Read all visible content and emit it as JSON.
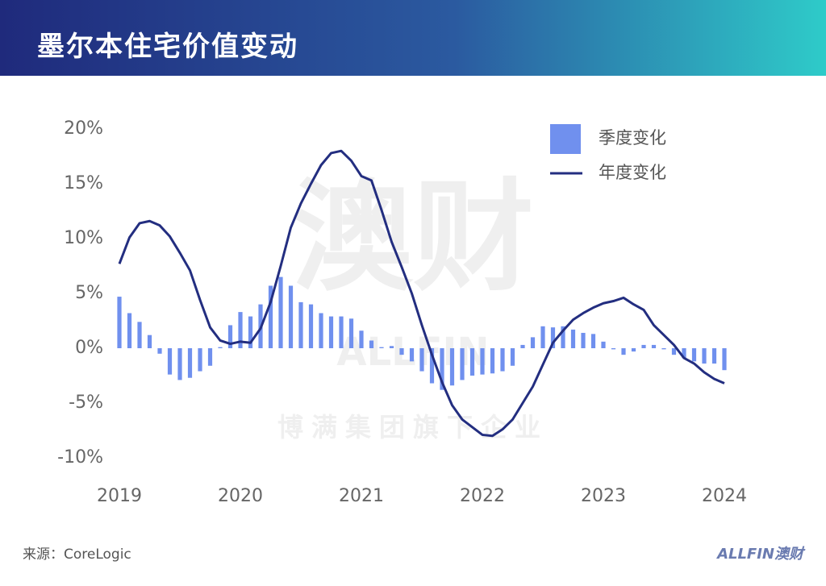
{
  "header": {
    "title": "墨尔本住宅价值变动"
  },
  "watermark": {
    "main": "澳财",
    "brand": "ALLFIN",
    "tagline": "博满集团旗下企业"
  },
  "footer": {
    "source": "来源：CoreLogic",
    "logo": "ALLFIN澳财"
  },
  "chart_data": {
    "type": "combo",
    "categories": [
      "2019",
      null,
      null,
      null,
      null,
      null,
      null,
      null,
      null,
      null,
      null,
      null,
      "2020",
      null,
      null,
      null,
      null,
      null,
      null,
      null,
      null,
      null,
      null,
      null,
      "2021",
      null,
      null,
      null,
      null,
      null,
      null,
      null,
      null,
      null,
      null,
      null,
      "2022",
      null,
      null,
      null,
      null,
      null,
      null,
      null,
      null,
      null,
      null,
      null,
      "2023",
      null,
      null,
      null,
      null,
      null,
      null,
      null,
      null,
      null,
      null,
      null,
      "2024"
    ],
    "series": [
      {
        "name": "季度变化",
        "type": "bar",
        "color": "#7090ee",
        "values": [
          4.7,
          3.2,
          2.4,
          1.2,
          -0.5,
          -2.4,
          -2.9,
          -2.7,
          -2.1,
          -1.6,
          0.1,
          2.1,
          3.3,
          2.9,
          4.0,
          5.7,
          6.5,
          5.7,
          4.2,
          4.0,
          3.2,
          2.9,
          2.9,
          2.7,
          1.6,
          0.7,
          0.1,
          0.2,
          -0.6,
          -1.2,
          -2.1,
          -3.2,
          -3.8,
          -3.4,
          -2.9,
          -2.5,
          -2.4,
          -2.3,
          -2.1,
          -1.6,
          0.3,
          1.0,
          2.0,
          1.9,
          2.0,
          1.7,
          1.4,
          1.3,
          0.6,
          -0.1,
          -0.6,
          -0.3,
          0.3,
          0.3,
          -0.1,
          -0.6,
          -0.9,
          -1.2,
          -1.4,
          -1.4,
          -2.0
        ]
      },
      {
        "name": "年度变化",
        "type": "line",
        "color": "#232e80",
        "values": [
          7.7,
          10.1,
          11.4,
          11.6,
          11.2,
          10.2,
          8.7,
          7.1,
          4.4,
          1.9,
          0.7,
          0.4,
          0.6,
          0.5,
          1.8,
          4.2,
          7.5,
          11.0,
          13.2,
          15.0,
          16.7,
          17.8,
          18.0,
          17.1,
          15.7,
          15.3,
          12.6,
          9.7,
          7.4,
          5.0,
          2.1,
          -0.6,
          -3.1,
          -5.2,
          -6.5,
          -7.2,
          -7.9,
          -8.0,
          -7.4,
          -6.5,
          -5.0,
          -3.5,
          -1.5,
          0.5,
          1.6,
          2.6,
          3.2,
          3.7,
          4.1,
          4.3,
          4.6,
          4.0,
          3.5,
          2.1,
          1.2,
          0.3,
          -0.9,
          -1.4,
          -2.2,
          -2.8,
          -3.2
        ]
      }
    ],
    "ylim": [
      -10,
      20
    ],
    "yticks": [
      {
        "value": 20,
        "label": "20%"
      },
      {
        "value": 15,
        "label": "15%"
      },
      {
        "value": 10,
        "label": "10%"
      },
      {
        "value": 5,
        "label": "5%"
      },
      {
        "value": 0,
        "label": "0%"
      },
      {
        "value": -5,
        "label": "-5%"
      },
      {
        "value": -10,
        "label": "-10%"
      }
    ],
    "legend": "top-right"
  }
}
